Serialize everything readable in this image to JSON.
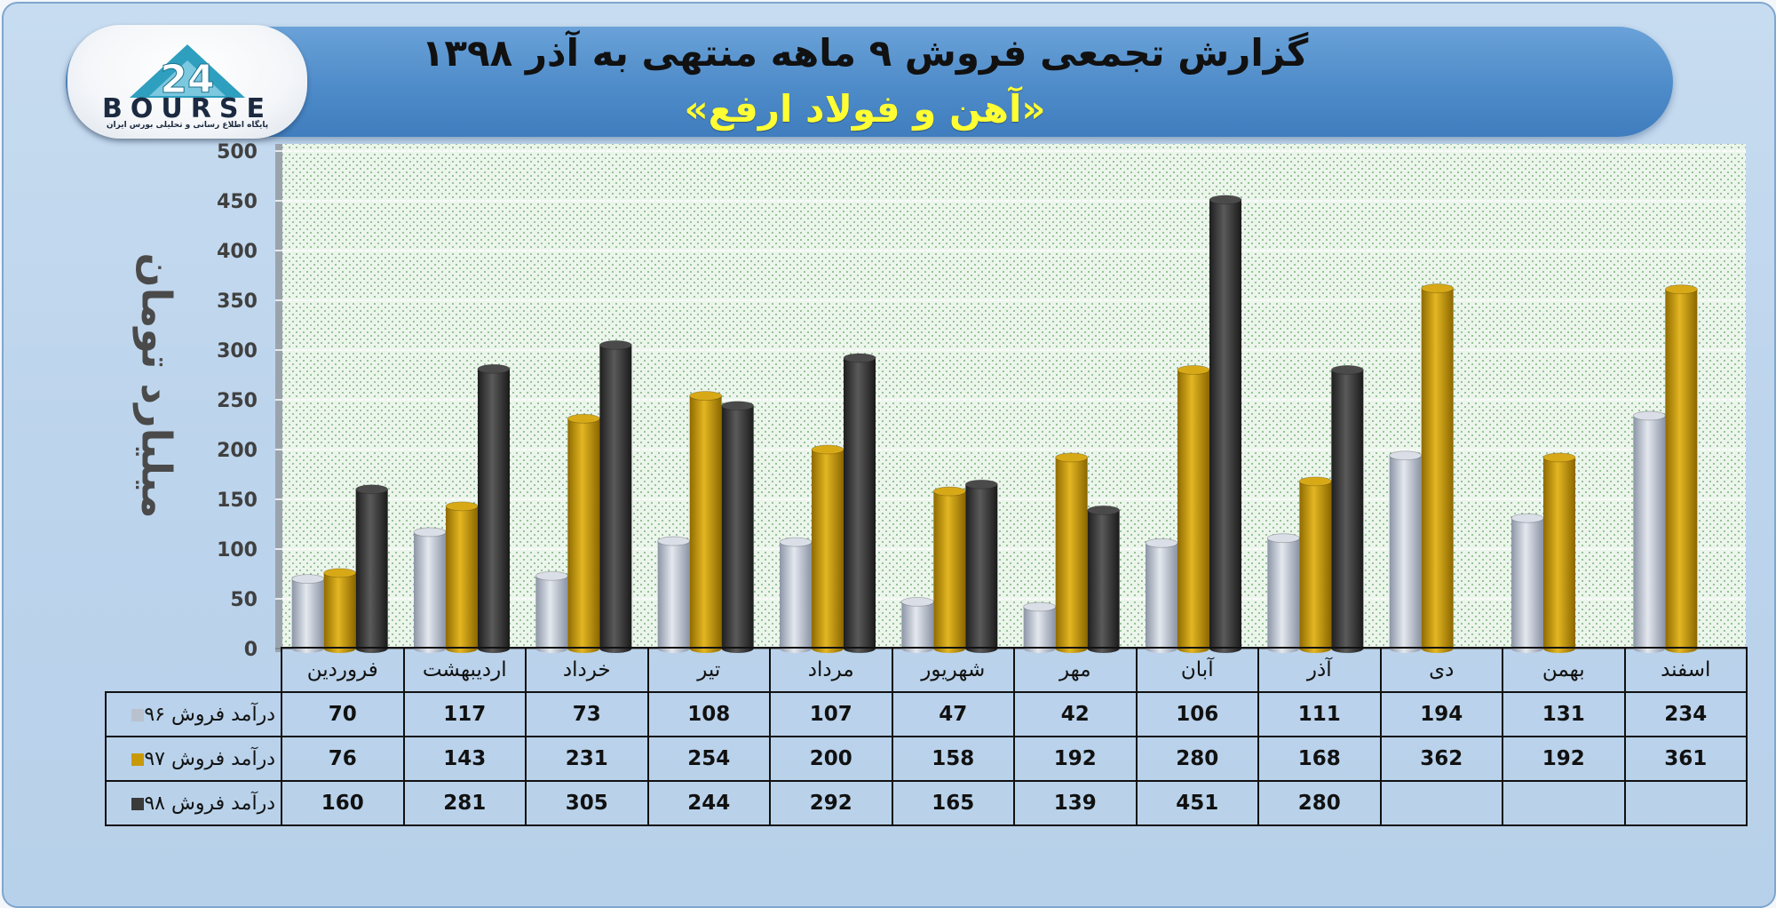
{
  "header": {
    "title": "گزارش تجمعی فروش ۹ ماهه منتهی به آذر ۱۳۹۸",
    "subtitle": "«آهن و فولاد ارفع»"
  },
  "logo": {
    "text": "BOURSE",
    "subtext": "پایگاه اطلاع رسانی و تحلیلی بورس ایران",
    "icon": "24-bourse-logo-icon"
  },
  "colors": {
    "series96": "#b9c1cf",
    "series97": "#c89a0a",
    "series98": "#3a3a3a",
    "plot_background": "#e6f2e6"
  },
  "chart_data": {
    "type": "bar",
    "ylabel": "میلیارد تومان",
    "ylim": [
      0,
      500
    ],
    "yticks": [
      0,
      50,
      100,
      150,
      200,
      250,
      300,
      350,
      400,
      450,
      500
    ],
    "grid": true,
    "legend": "table-left",
    "categories": [
      "فروردین",
      "اردیبهشت",
      "خرداد",
      "تیر",
      "مرداد",
      "شهریور",
      "مهر",
      "آبان",
      "آذر",
      "دی",
      "بهمن",
      "اسفند"
    ],
    "series": [
      {
        "name": "درآمد فروش ۹۶",
        "values": [
          70,
          117,
          73,
          108,
          107,
          47,
          42,
          106,
          111,
          194,
          131,
          234
        ]
      },
      {
        "name": "درآمد فروش ۹۷",
        "values": [
          76,
          143,
          231,
          254,
          200,
          158,
          192,
          280,
          168,
          362,
          192,
          361
        ]
      },
      {
        "name": "درآمد فروش ۹۸",
        "values": [
          160,
          281,
          305,
          244,
          292,
          165,
          139,
          451,
          280,
          null,
          null,
          null
        ]
      }
    ]
  }
}
